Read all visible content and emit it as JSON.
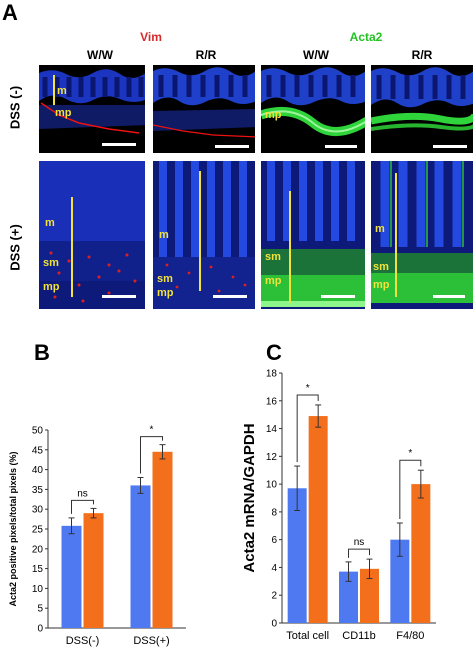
{
  "figure": {
    "panel_a": {
      "letter": "A",
      "stain_left": {
        "label": "Vim",
        "color": "#d42a2a"
      },
      "stain_right": {
        "label": "Acta2",
        "color": "#22c322"
      },
      "columns": [
        "W/W",
        "R/R",
        "W/W",
        "R/R"
      ],
      "rows": [
        "DSS (-)",
        "DSS (+)"
      ],
      "tissue_labels": {
        "m": "m",
        "mp": "mp",
        "sm": "sm"
      }
    },
    "panel_b": {
      "letter": "B"
    },
    "panel_c": {
      "letter": "C"
    }
  },
  "chart_data": [
    {
      "type": "bar",
      "ylabel": "Acta2 positive pixels/total pixels (%)",
      "xlabel": "",
      "categories": [
        "DSS(-)",
        "DSS(+)"
      ],
      "series": [
        {
          "values": [
            25.8,
            36.0
          ],
          "errors": [
            2.0,
            2.0
          ],
          "color": "#4f79f0"
        },
        {
          "values": [
            29.0,
            44.5
          ],
          "errors": [
            1.2,
            1.8
          ],
          "color": "#f46f1c"
        }
      ],
      "ylim": [
        0,
        50
      ],
      "yticks": [
        0,
        5,
        10,
        15,
        20,
        25,
        30,
        35,
        40,
        45,
        50
      ],
      "significance": [
        {
          "category": 0,
          "label": "ns"
        },
        {
          "category": 1,
          "label": "*"
        }
      ],
      "grid": false
    },
    {
      "type": "bar",
      "ylabel": "Acta2 mRNA/GAPDH",
      "xlabel": "",
      "categories": [
        "Total cell",
        "CD11b",
        "F4/80"
      ],
      "series": [
        {
          "values": [
            9.7,
            3.7,
            6.0
          ],
          "errors": [
            1.6,
            0.7,
            1.2
          ],
          "color": "#4f79f0"
        },
        {
          "values": [
            14.9,
            3.9,
            10.0
          ],
          "errors": [
            0.8,
            0.7,
            1.0
          ],
          "color": "#f46f1c"
        }
      ],
      "ylim": [
        0,
        18
      ],
      "yticks": [
        0,
        2,
        4,
        6,
        8,
        10,
        12,
        14,
        16,
        18
      ],
      "significance": [
        {
          "category": 0,
          "label": "*"
        },
        {
          "category": 1,
          "label": "ns"
        },
        {
          "category": 2,
          "label": "*"
        }
      ],
      "grid": false
    }
  ]
}
